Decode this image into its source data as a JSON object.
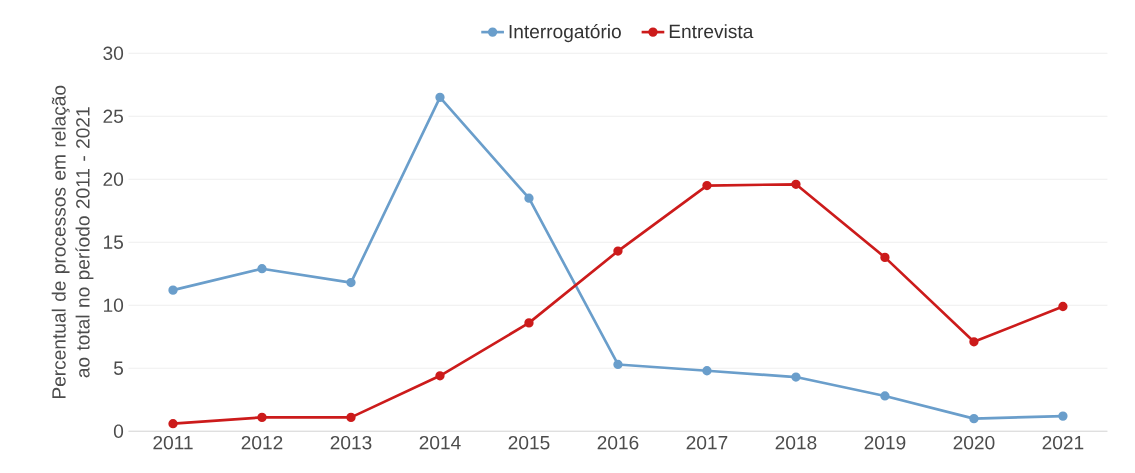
{
  "chart_data": {
    "type": "line",
    "ylabel": "Percentual de processos em relação ao total no período 2011 - 2021",
    "categories": [
      "2011",
      "2012",
      "2013",
      "2014",
      "2015",
      "2016",
      "2017",
      "2018",
      "2019",
      "2020",
      "2021"
    ],
    "series": [
      {
        "name": "Interrogatório",
        "color": "#6a9ecb",
        "values": [
          11.2,
          12.9,
          11.8,
          26.5,
          18.5,
          5.3,
          4.8,
          4.3,
          2.8,
          1.0,
          1.2
        ]
      },
      {
        "name": "Entrevista",
        "color": "#cc1b1b",
        "values": [
          0.6,
          1.1,
          1.1,
          4.4,
          8.6,
          14.3,
          19.5,
          19.6,
          13.8,
          7.1,
          9.9
        ]
      }
    ],
    "ylim": [
      0,
      30
    ],
    "yticks": [
      0,
      5,
      10,
      15,
      20,
      25,
      30
    ],
    "grid": "y",
    "legend": "top",
    "marker": "circle",
    "line_style": "solid"
  }
}
